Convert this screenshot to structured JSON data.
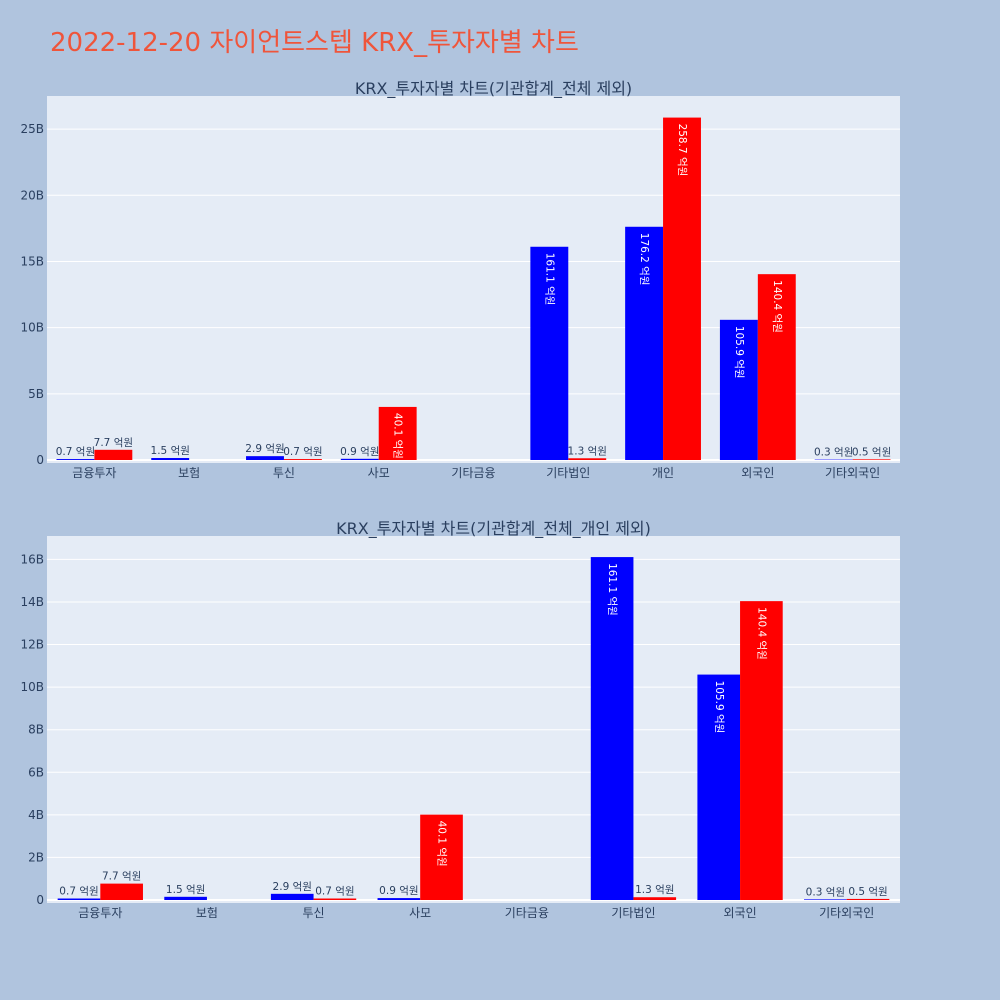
{
  "page_title": "2022-12-20 자이언트스텝 KRX_투자자별 차트",
  "colors": {
    "buy": "#0000ff",
    "sell": "#ff0000",
    "title": "#ef553b",
    "plot_bg": "#e5ecf6",
    "paper_bg": "#b0c4de",
    "text": "#2a3f5f"
  },
  "chart_data": [
    {
      "type": "bar",
      "title": "KRX_투자자별 차트(기관합계_전체 제외)",
      "categories": [
        "금융투자",
        "보험",
        "투신",
        "사모",
        "기타금융",
        "기타법인",
        "개인",
        "외국인",
        "기타외국인"
      ],
      "series": [
        {
          "values": [
            0.07,
            0.15,
            0.29,
            0.09,
            0.0,
            16.11,
            17.62,
            10.59,
            0.03
          ],
          "labels": [
            "0.7 억원",
            "1.5 억원",
            "2.9 억원",
            "0.9 억원",
            "",
            "161.1 억원",
            "176.2 억원",
            "105.9 억원",
            "0.3 억원"
          ]
        },
        {
          "values": [
            0.77,
            0.0,
            0.07,
            4.01,
            0.0,
            0.13,
            25.87,
            14.04,
            0.05
          ],
          "labels": [
            "7.7 억원",
            "",
            "0.7 억원",
            "40.1 억원",
            "",
            "1.3 억원",
            "258.7 억원",
            "140.4 억원",
            "0.5 억원"
          ]
        }
      ],
      "y_unit": "B",
      "ylim": [
        0,
        27.5
      ],
      "yticks": [
        0,
        5,
        10,
        15,
        20,
        25
      ],
      "ytick_labels": [
        "0",
        "5B",
        "10B",
        "15B",
        "20B",
        "25B"
      ]
    },
    {
      "type": "bar",
      "title": "KRX_투자자별 차트(기관합계_전체_개인 제외)",
      "categories": [
        "금융투자",
        "보험",
        "투신",
        "사모",
        "기타금융",
        "기타법인",
        "외국인",
        "기타외국인"
      ],
      "series": [
        {
          "values": [
            0.07,
            0.15,
            0.29,
            0.09,
            0.0,
            16.11,
            10.59,
            0.03
          ],
          "labels": [
            "0.7 억원",
            "1.5 억원",
            "2.9 억원",
            "0.9 억원",
            "",
            "161.1 억원",
            "105.9 억원",
            "0.3 억원"
          ]
        },
        {
          "values": [
            0.77,
            0.0,
            0.07,
            4.01,
            0.0,
            0.13,
            14.04,
            0.05
          ],
          "labels": [
            "7.7 억원",
            "",
            "0.7 억원",
            "40.1 억원",
            "",
            "1.3 억원",
            "140.4 억원",
            "0.5 억원"
          ]
        }
      ],
      "y_unit": "B",
      "ylim": [
        0,
        17.1
      ],
      "yticks": [
        0,
        2,
        4,
        6,
        8,
        10,
        12,
        14,
        16
      ],
      "ytick_labels": [
        "0",
        "2B",
        "4B",
        "6B",
        "8B",
        "10B",
        "12B",
        "14B",
        "16B"
      ]
    }
  ]
}
